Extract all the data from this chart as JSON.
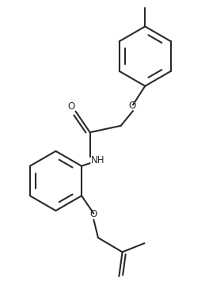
{
  "bg_color": "#ffffff",
  "line_color": "#2a2a2a",
  "line_width": 1.5,
  "fig_width": 2.83,
  "fig_height": 3.65,
  "dpi": 100,
  "xlim": [
    0,
    10
  ],
  "ylim": [
    0,
    13
  ]
}
